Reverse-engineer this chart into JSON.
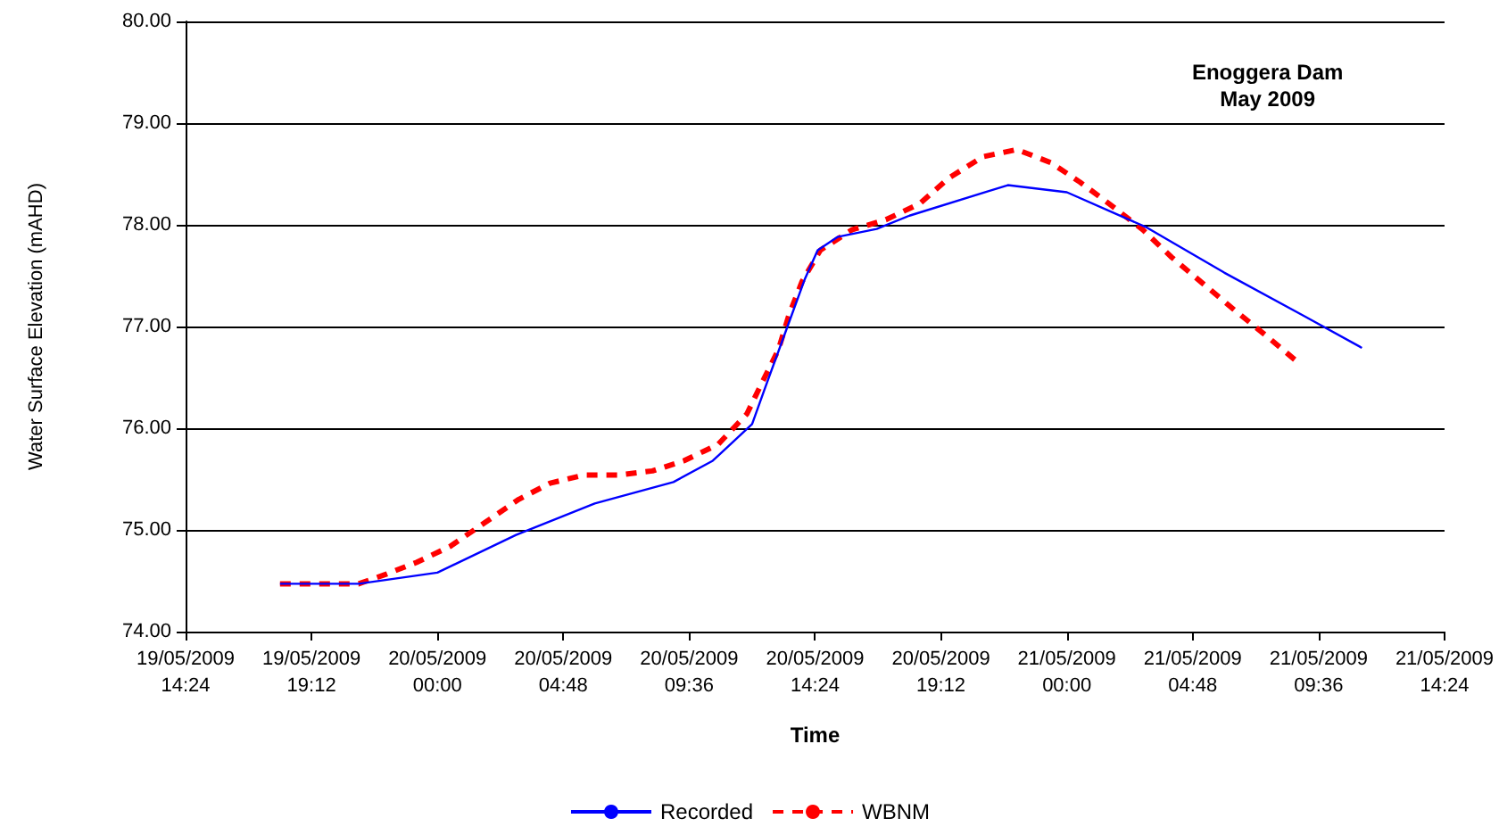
{
  "chart_data": {
    "type": "line",
    "xlabel": "Time",
    "ylabel": "Water Surface Elevation (mAHD)",
    "annotations": [
      "Enoggera Dam\nMay 2009"
    ],
    "xlim": [
      "2009-05-19T14:24",
      "2009-05-21T14:24"
    ],
    "xticks": [
      {
        "value": "2009-05-19T14:24",
        "label": "19/05/2009\n14:24"
      },
      {
        "value": "2009-05-19T19:12",
        "label": "19/05/2009\n19:12"
      },
      {
        "value": "2009-05-20T00:00",
        "label": "20/05/2009\n00:00"
      },
      {
        "value": "2009-05-20T04:48",
        "label": "20/05/2009\n04:48"
      },
      {
        "value": "2009-05-20T09:36",
        "label": "20/05/2009\n09:36"
      },
      {
        "value": "2009-05-20T14:24",
        "label": "20/05/2009\n14:24"
      },
      {
        "value": "2009-05-20T19:12",
        "label": "20/05/2009\n19:12"
      },
      {
        "value": "2009-05-21T00:00",
        "label": "21/05/2009\n00:00"
      },
      {
        "value": "2009-05-21T04:48",
        "label": "21/05/2009\n04:48"
      },
      {
        "value": "2009-05-21T09:36",
        "label": "21/05/2009\n09:36"
      },
      {
        "value": "2009-05-21T14:24",
        "label": "21/05/2009\n14:24"
      }
    ],
    "ylim": [
      74,
      80
    ],
    "yticks": [
      {
        "value": 74,
        "label": "74.00"
      },
      {
        "value": 75,
        "label": "75.00"
      },
      {
        "value": 76,
        "label": "76.00"
      },
      {
        "value": 77,
        "label": "77.00"
      },
      {
        "value": 78,
        "label": "78.00"
      },
      {
        "value": 79,
        "label": "79.00"
      },
      {
        "value": 80,
        "label": "80.00"
      }
    ],
    "grid": "y",
    "legend": "bottom",
    "marker": "none",
    "series": [
      {
        "name": "Recorded",
        "color": "#0000ff",
        "line_style": "solid",
        "x": [
          "2009-05-19T18:00",
          "2009-05-19T21:00",
          "2009-05-20T00:00",
          "2009-05-20T03:00",
          "2009-05-20T06:00",
          "2009-05-20T09:00",
          "2009-05-20T10:30",
          "2009-05-20T12:00",
          "2009-05-20T12:30",
          "2009-05-20T13:15",
          "2009-05-20T14:00",
          "2009-05-20T14:30",
          "2009-05-20T15:15",
          "2009-05-20T16:45",
          "2009-05-20T18:00",
          "2009-05-20T21:00",
          "2009-05-20T21:45",
          "2009-05-21T00:00",
          "2009-05-21T03:00",
          "2009-05-21T06:00",
          "2009-05-21T09:00",
          "2009-05-21T11:15"
        ],
        "values": [
          74.47,
          74.47,
          74.58,
          74.95,
          75.26,
          75.47,
          75.68,
          76.04,
          76.4,
          76.93,
          77.46,
          77.75,
          77.88,
          77.96,
          78.09,
          78.33,
          78.39,
          78.32,
          77.98,
          77.53,
          77.11,
          76.79
        ]
      },
      {
        "name": "WBNM",
        "color": "#ff0000",
        "line_style": "dashed",
        "x": [
          "2009-05-19T18:00",
          "2009-05-19T19:30",
          "2009-05-19T21:00",
          "2009-05-19T22:00",
          "2009-05-19T23:12",
          "2009-05-20T00:30",
          "2009-05-20T01:48",
          "2009-05-20T03:06",
          "2009-05-20T04:18",
          "2009-05-20T05:36",
          "2009-05-20T06:54",
          "2009-05-20T08:12",
          "2009-05-20T09:24",
          "2009-05-20T10:42",
          "2009-05-20T11:48",
          "2009-05-20T12:24",
          "2009-05-20T13:00",
          "2009-05-20T13:24",
          "2009-05-20T13:54",
          "2009-05-20T14:36",
          "2009-05-20T15:48",
          "2009-05-20T17:06",
          "2009-05-20T18:24",
          "2009-05-20T19:30",
          "2009-05-20T20:48",
          "2009-05-20T22:06",
          "2009-05-20T23:24",
          "2009-05-21T00:30",
          "2009-05-21T01:42",
          "2009-05-21T02:54",
          "2009-05-21T04:00",
          "2009-05-21T05:12",
          "2009-05-21T06:24",
          "2009-05-21T07:36",
          "2009-05-21T08:48"
        ],
        "values": [
          74.47,
          74.47,
          74.47,
          74.56,
          74.68,
          74.84,
          75.07,
          75.3,
          75.46,
          75.54,
          75.54,
          75.58,
          75.68,
          75.84,
          76.14,
          76.46,
          76.77,
          77.11,
          77.44,
          77.75,
          77.95,
          78.05,
          78.21,
          78.46,
          78.67,
          78.74,
          78.61,
          78.42,
          78.19,
          77.95,
          77.68,
          77.42,
          77.16,
          76.91,
          76.65
        ]
      }
    ]
  }
}
